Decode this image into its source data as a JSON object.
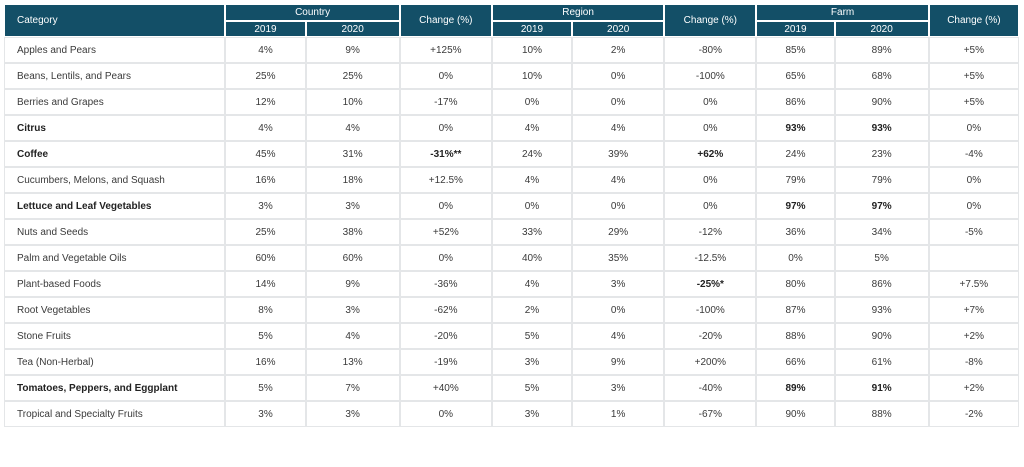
{
  "headers": {
    "category": "Category",
    "country": "Country",
    "region": "Region",
    "farm": "Farm",
    "change": "Change (%)",
    "y2019": "2019",
    "y2020": "2020"
  },
  "rows": [
    {
      "cat": "Apples and Pears",
      "c19": "4%",
      "c20": "9%",
      "cc": "+125%",
      "r19": "10%",
      "r20": "2%",
      "rc": "-80%",
      "f19": "85%",
      "f20": "89%",
      "fc": "+5%"
    },
    {
      "cat": "Beans, Lentils, and Pears",
      "c19": "25%",
      "c20": "25%",
      "cc": "0%",
      "r19": "10%",
      "r20": "0%",
      "rc": "-100%",
      "f19": "65%",
      "f20": "68%",
      "fc": "+5%"
    },
    {
      "cat": "Berries and Grapes",
      "c19": "12%",
      "c20": "10%",
      "cc": "-17%",
      "r19": "0%",
      "r20": "0%",
      "rc": "0%",
      "f19": "86%",
      "f20": "90%",
      "fc": "+5%"
    },
    {
      "cat": "Citrus",
      "c19": "4%",
      "c20": "4%",
      "cc": "0%",
      "r19": "4%",
      "r20": "4%",
      "rc": "0%",
      "f19": "93%",
      "f20": "93%",
      "fc": "0%",
      "bold": [
        "cat",
        "f19",
        "f20"
      ]
    },
    {
      "cat": "Coffee",
      "c19": "45%",
      "c20": "31%",
      "cc": "-31%**",
      "r19": "24%",
      "r20": "39%",
      "rc": "+62%",
      "f19": "24%",
      "f20": "23%",
      "fc": "-4%",
      "bold": [
        "cat",
        "cc",
        "rc"
      ]
    },
    {
      "cat": "Cucumbers, Melons, and Squash",
      "c19": "16%",
      "c20": "18%",
      "cc": "+12.5%",
      "r19": "4%",
      "r20": "4%",
      "rc": "0%",
      "f19": "79%",
      "f20": "79%",
      "fc": "0%"
    },
    {
      "cat": "Lettuce and Leaf Vegetables",
      "c19": "3%",
      "c20": "3%",
      "cc": "0%",
      "r19": "0%",
      "r20": "0%",
      "rc": "0%",
      "f19": "97%",
      "f20": "97%",
      "fc": "0%",
      "bold": [
        "cat",
        "f19",
        "f20"
      ]
    },
    {
      "cat": "Nuts and Seeds",
      "c19": "25%",
      "c20": "38%",
      "cc": "+52%",
      "r19": "33%",
      "r20": "29%",
      "rc": "-12%",
      "f19": "36%",
      "f20": "34%",
      "fc": "-5%"
    },
    {
      "cat": "Palm and Vegetable Oils",
      "c19": "60%",
      "c20": "60%",
      "cc": "0%",
      "r19": "40%",
      "r20": "35%",
      "rc": "-12.5%",
      "f19": "0%",
      "f20": "5%",
      "fc": ""
    },
    {
      "cat": "Plant-based Foods",
      "c19": "14%",
      "c20": "9%",
      "cc": "-36%",
      "r19": "4%",
      "r20": "3%",
      "rc": "-25%*",
      "f19": "80%",
      "f20": "86%",
      "fc": "+7.5%",
      "bold": [
        "rc"
      ]
    },
    {
      "cat": "Root Vegetables",
      "c19": "8%",
      "c20": "3%",
      "cc": "-62%",
      "r19": "2%",
      "r20": "0%",
      "rc": "-100%",
      "f19": "87%",
      "f20": "93%",
      "fc": "+7%"
    },
    {
      "cat": "Stone Fruits",
      "c19": "5%",
      "c20": "4%",
      "cc": "-20%",
      "r19": "5%",
      "r20": "4%",
      "rc": "-20%",
      "f19": "88%",
      "f20": "90%",
      "fc": "+2%"
    },
    {
      "cat": "Tea (Non-Herbal)",
      "c19": "16%",
      "c20": "13%",
      "cc": "-19%",
      "r19": "3%",
      "r20": "9%",
      "rc": "+200%",
      "f19": "66%",
      "f20": "61%",
      "fc": "-8%"
    },
    {
      "cat": "Tomatoes, Peppers, and Eggplant",
      "c19": "5%",
      "c20": "7%",
      "cc": "+40%",
      "r19": "5%",
      "r20": "3%",
      "rc": "-40%",
      "f19": "89%",
      "f20": "91%",
      "fc": "+2%",
      "bold": [
        "cat",
        "f19",
        "f20"
      ]
    },
    {
      "cat": "Tropical and Specialty Fruits",
      "c19": "3%",
      "c20": "3%",
      "cc": "0%",
      "r19": "3%",
      "r20": "1%",
      "rc": "-67%",
      "f19": "90%",
      "f20": "88%",
      "fc": "-2%"
    }
  ]
}
